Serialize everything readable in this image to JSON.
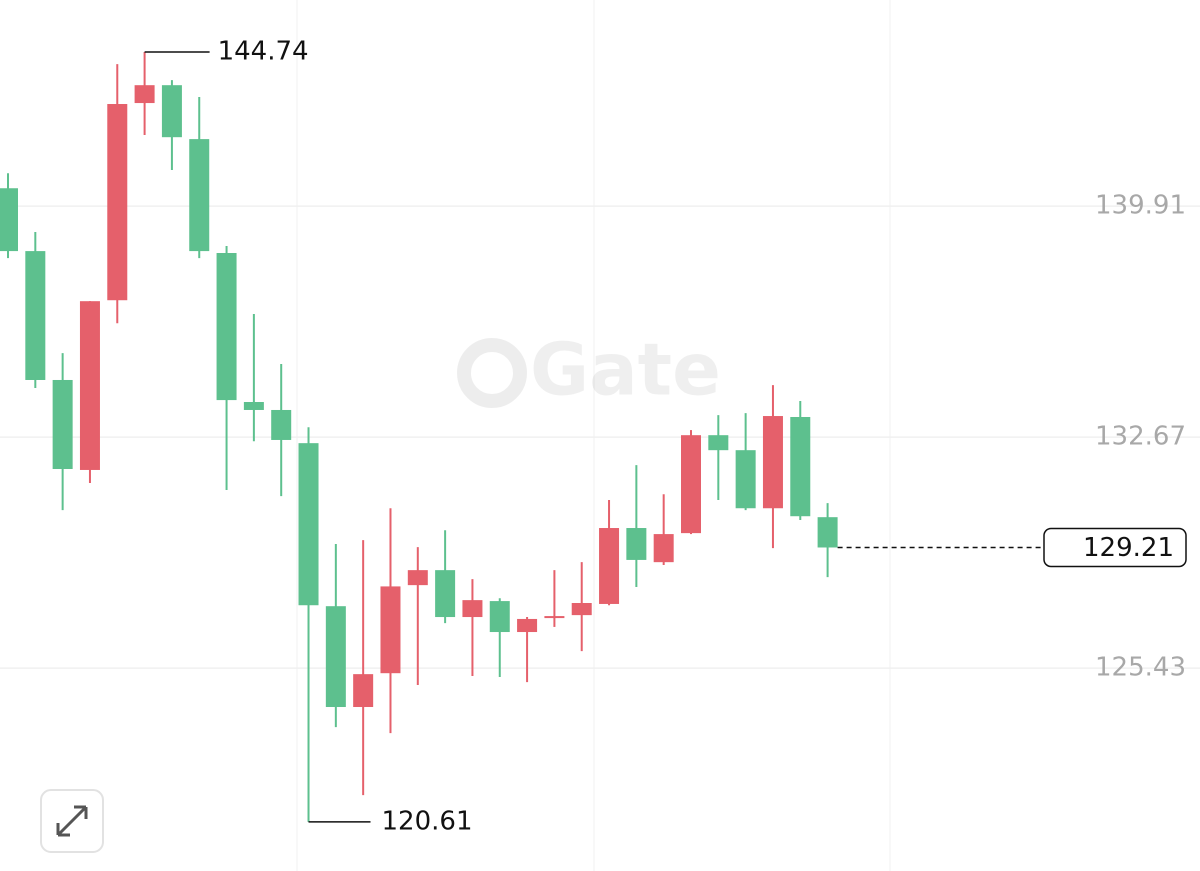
{
  "chart_data": {
    "type": "candlestick",
    "watermark": "Gate",
    "up_color": "#e5606b",
    "down_color": "#5dc08e",
    "grid": true,
    "ylim": [
      119.07,
      146.37
    ],
    "yticks": [
      125.43,
      132.67,
      139.91
    ],
    "open": [
      140.47,
      138.5,
      134.46,
      131.64,
      136.96,
      143.14,
      143.7,
      142.01,
      138.44,
      133.77,
      133.52,
      132.48,
      127.37,
      124.21,
      125.27,
      128.03,
      128.5,
      127.03,
      127.53,
      126.56,
      127.0,
      127.09,
      127.44,
      129.82,
      128.75,
      129.66,
      132.73,
      132.26,
      130.44,
      133.3,
      130.16
    ],
    "high": [
      140.94,
      139.1,
      135.3,
      136.93,
      144.36,
      144.74,
      143.86,
      143.33,
      138.66,
      136.53,
      134.96,
      132.98,
      129.32,
      129.44,
      130.44,
      129.22,
      129.75,
      128.22,
      127.62,
      127.03,
      128.5,
      128.75,
      130.7,
      131.79,
      130.88,
      132.89,
      133.36,
      133.42,
      134.3,
      133.8,
      130.6
    ],
    "low": [
      138.28,
      134.21,
      130.38,
      131.23,
      136.24,
      142.14,
      141.04,
      138.28,
      131.01,
      132.54,
      130.82,
      120.61,
      123.58,
      121.45,
      123.39,
      124.9,
      126.84,
      125.18,
      125.15,
      124.99,
      126.72,
      125.96,
      127.4,
      127.97,
      128.66,
      129.63,
      130.7,
      130.38,
      129.19,
      130.07,
      128.28
    ],
    "close": [
      138.5,
      134.46,
      131.67,
      136.93,
      143.11,
      143.7,
      142.07,
      138.5,
      133.83,
      133.52,
      132.58,
      127.4,
      124.21,
      125.24,
      127.99,
      128.5,
      127.03,
      127.56,
      126.56,
      126.97,
      127.06,
      127.47,
      129.82,
      128.82,
      129.63,
      132.73,
      132.26,
      130.44,
      133.33,
      130.19,
      129.21
    ],
    "high_marker": 144.74,
    "low_marker": 120.61,
    "last_price": 129.21
  }
}
